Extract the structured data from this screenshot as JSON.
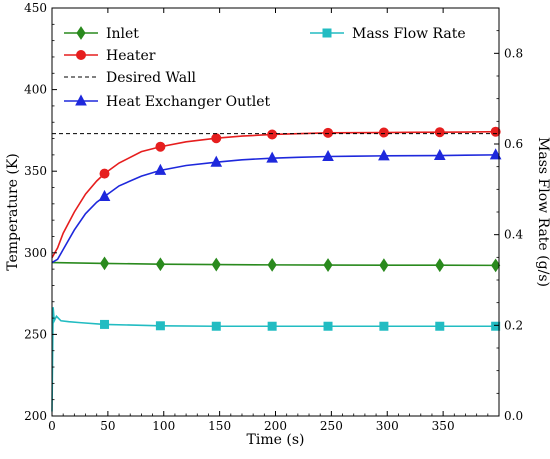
{
  "chart_data": {
    "type": "line",
    "xlabel": "Time (s)",
    "ylabel": "Temperature (K)",
    "y2label": "Mass Flow Rate (g/s)",
    "xlim": [
      0,
      400
    ],
    "ylim": [
      200,
      450
    ],
    "y2lim": [
      0.0,
      0.9
    ],
    "xticks": [
      "0",
      "50",
      "100",
      "150",
      "200",
      "250",
      "300",
      "350"
    ],
    "yticks": [
      "200",
      "250",
      "300",
      "350",
      "400",
      "450"
    ],
    "y2ticks": [
      "0.0",
      "0.2",
      "0.4",
      "0.6",
      "0.8"
    ],
    "grid": false,
    "legend_position": "top",
    "series": [
      {
        "name": "Inlet",
        "axis": "left",
        "color": "#2a8a1e",
        "marker": "diamond",
        "x": [
          0,
          47,
          97,
          147,
          197,
          247,
          297,
          347,
          397
        ],
        "y": [
          294,
          293.5,
          293,
          292.8,
          292.6,
          292.5,
          292.4,
          292.4,
          292.3
        ]
      },
      {
        "name": "Heater",
        "axis": "left",
        "color": "#e61e1e",
        "marker": "circle",
        "x": [
          0,
          5,
          10,
          20,
          30,
          40,
          47,
          60,
          80,
          97,
          120,
          147,
          170,
          197,
          220,
          247,
          270,
          297,
          320,
          347,
          370,
          397
        ],
        "y": [
          297,
          303,
          312,
          325,
          336,
          344,
          348.5,
          355,
          362,
          365,
          368,
          370.2,
          371.5,
          372.5,
          373,
          373.5,
          373.6,
          373.7,
          373.8,
          373.9,
          374,
          374.2
        ]
      },
      {
        "name": "Desired Wall",
        "axis": "left",
        "color": "#000000",
        "marker": "none",
        "dashed": true,
        "x": [
          0,
          400
        ],
        "y": [
          373,
          373
        ]
      },
      {
        "name": "Heat Exchanger Outlet",
        "axis": "left",
        "color": "#1e28dc",
        "marker": "triangle",
        "x": [
          0,
          5,
          10,
          20,
          30,
          40,
          47,
          60,
          80,
          97,
          120,
          147,
          170,
          197,
          220,
          247,
          270,
          297,
          320,
          347,
          370,
          397
        ],
        "y": [
          294,
          296,
          302,
          314,
          324,
          331,
          334.5,
          341,
          347,
          350.5,
          353.5,
          355.5,
          357,
          358,
          358.5,
          359,
          359.2,
          359.4,
          359.5,
          359.6,
          359.8,
          360
        ]
      },
      {
        "name": "Mass Flow Rate",
        "axis": "right",
        "color": "#22bcc2",
        "marker": "square",
        "x": [
          0,
          1,
          2,
          4,
          8,
          15,
          25,
          47,
          97,
          147,
          197,
          247,
          297,
          347,
          397
        ],
        "y": [
          0.01,
          0.24,
          0.21,
          0.22,
          0.21,
          0.208,
          0.206,
          0.202,
          0.199,
          0.198,
          0.198,
          0.198,
          0.198,
          0.198,
          0.198
        ]
      }
    ]
  }
}
